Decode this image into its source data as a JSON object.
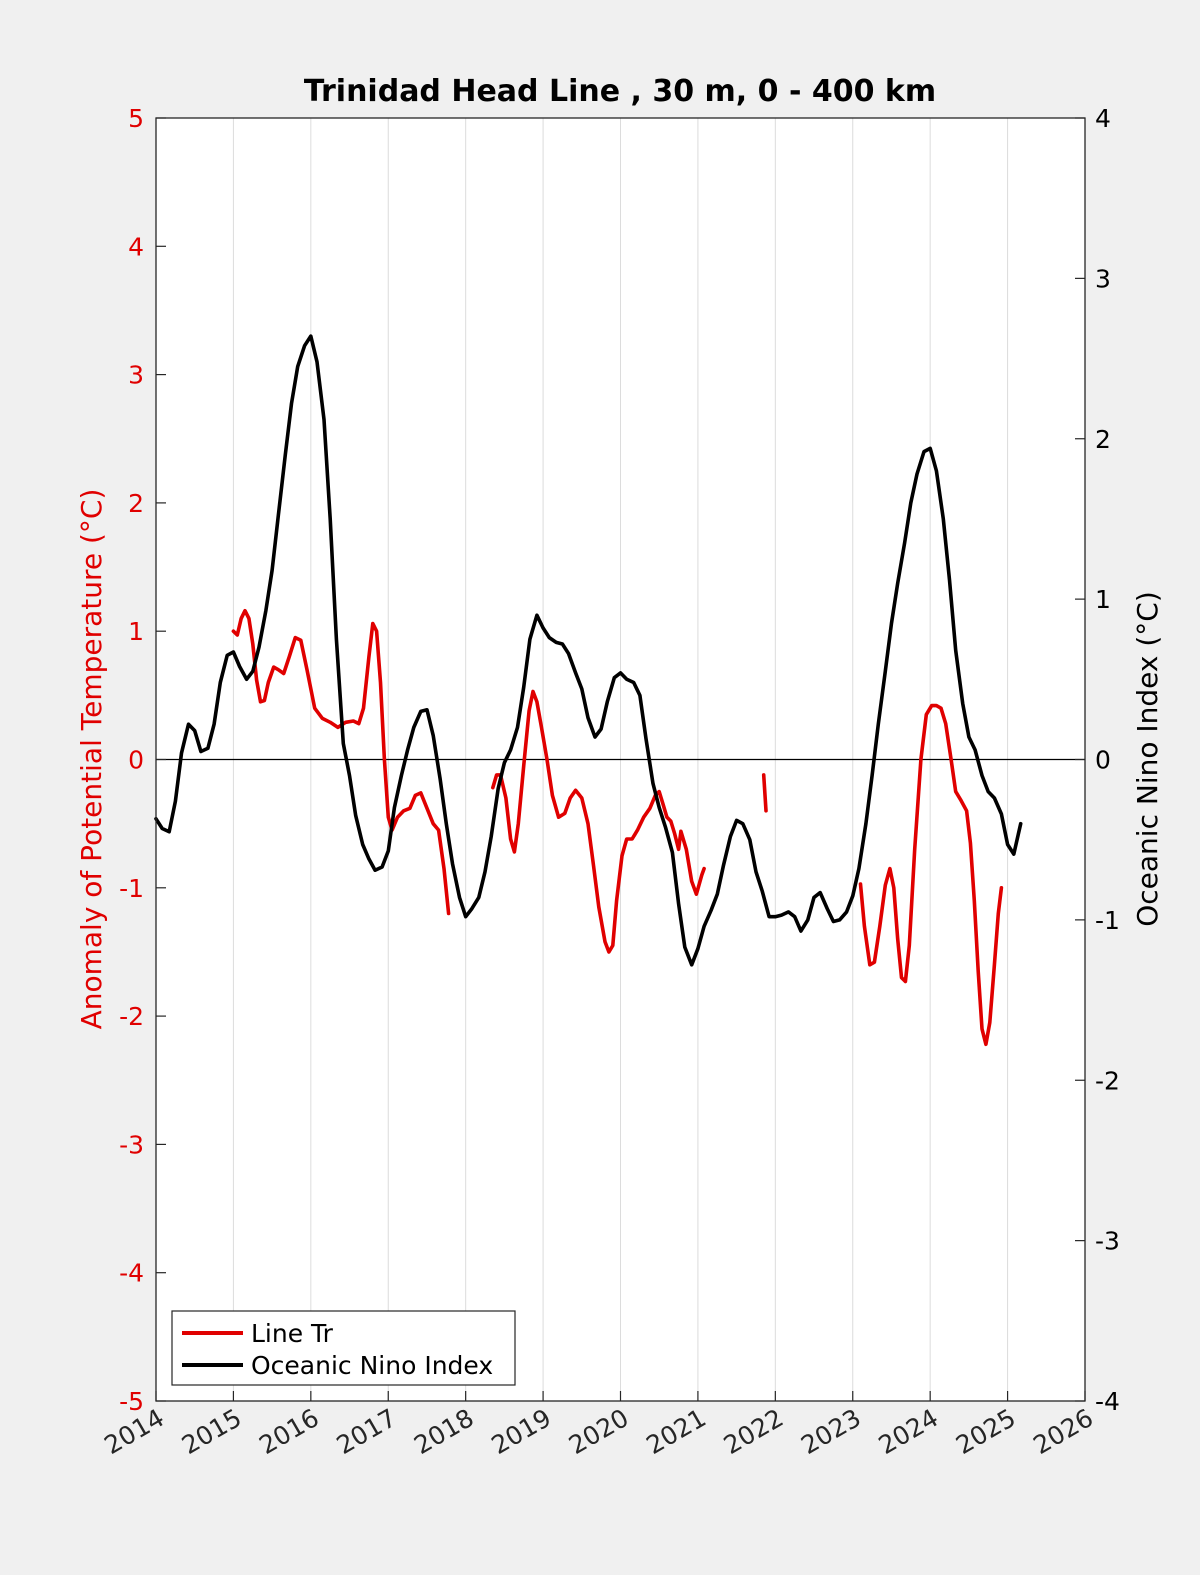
{
  "chart_data": {
    "type": "line",
    "title": "Trinidad Head Line , 30 m, 0 - 400 km",
    "ylabel_left": "Anomaly of Potential Temperature (°C)",
    "ylabel_right": "Oceanic Nino Index (°C)",
    "xlabel": "",
    "xlim": [
      2014,
      2026
    ],
    "ylim_left": [
      -5,
      5
    ],
    "ylim_right": [
      -4,
      4
    ],
    "x_ticks": [
      "2014",
      "2015",
      "2016",
      "2017",
      "2018",
      "2019",
      "2020",
      "2021",
      "2022",
      "2023",
      "2024",
      "2025",
      "2026"
    ],
    "y_ticks_left": [
      "5",
      "4",
      "3",
      "2",
      "1",
      "0",
      "-1",
      "-2",
      "-3",
      "-4",
      "-5"
    ],
    "y_ticks_right": [
      "4",
      "3",
      "2",
      "1",
      "0",
      "-1",
      "-2",
      "-3",
      "-4"
    ],
    "grid": "vertical",
    "zero_line": true,
    "legend": {
      "position": "bottom-left",
      "entries": [
        {
          "label": "Line Tr",
          "color": "#e00000"
        },
        {
          "label": "Oceanic Nino Index",
          "color": "#000000"
        }
      ]
    },
    "series": [
      {
        "name": "Line Tr",
        "axis": "left",
        "color": "#e00000",
        "segments": [
          [
            [
              2015.0,
              1.0
            ],
            [
              2015.05,
              0.97
            ],
            [
              2015.1,
              1.1
            ],
            [
              2015.15,
              1.16
            ],
            [
              2015.2,
              1.1
            ],
            [
              2015.25,
              0.9
            ],
            [
              2015.3,
              0.62
            ],
            [
              2015.35,
              0.45
            ],
            [
              2015.4,
              0.46
            ],
            [
              2015.45,
              0.6
            ],
            [
              2015.52,
              0.72
            ],
            [
              2015.58,
              0.7
            ],
            [
              2015.65,
              0.67
            ],
            [
              2015.72,
              0.8
            ],
            [
              2015.8,
              0.95
            ],
            [
              2015.87,
              0.93
            ],
            [
              2015.95,
              0.7
            ],
            [
              2016.05,
              0.4
            ],
            [
              2016.15,
              0.32
            ],
            [
              2016.25,
              0.29
            ],
            [
              2016.35,
              0.25
            ],
            [
              2016.45,
              0.29
            ],
            [
              2016.55,
              0.3
            ],
            [
              2016.62,
              0.28
            ],
            [
              2016.68,
              0.4
            ],
            [
              2016.75,
              0.8
            ],
            [
              2016.8,
              1.06
            ],
            [
              2016.85,
              1.0
            ],
            [
              2016.9,
              0.6
            ],
            [
              2016.95,
              0.0
            ],
            [
              2017.0,
              -0.45
            ],
            [
              2017.05,
              -0.55
            ],
            [
              2017.12,
              -0.45
            ],
            [
              2017.2,
              -0.4
            ],
            [
              2017.28,
              -0.38
            ],
            [
              2017.35,
              -0.28
            ],
            [
              2017.42,
              -0.26
            ],
            [
              2017.5,
              -0.38
            ],
            [
              2017.58,
              -0.5
            ],
            [
              2017.65,
              -0.55
            ],
            [
              2017.72,
              -0.85
            ],
            [
              2017.78,
              -1.2
            ]
          ],
          [
            [
              2018.35,
              -0.22
            ],
            [
              2018.4,
              -0.12
            ],
            [
              2018.45,
              -0.12
            ],
            [
              2018.52,
              -0.3
            ],
            [
              2018.58,
              -0.62
            ],
            [
              2018.63,
              -0.72
            ],
            [
              2018.68,
              -0.5
            ],
            [
              2018.75,
              -0.05
            ],
            [
              2018.82,
              0.38
            ],
            [
              2018.87,
              0.53
            ],
            [
              2018.92,
              0.45
            ],
            [
              2018.98,
              0.25
            ],
            [
              2019.05,
              0.0
            ],
            [
              2019.12,
              -0.28
            ],
            [
              2019.2,
              -0.45
            ],
            [
              2019.28,
              -0.42
            ],
            [
              2019.35,
              -0.3
            ],
            [
              2019.42,
              -0.24
            ],
            [
              2019.5,
              -0.3
            ],
            [
              2019.58,
              -0.5
            ],
            [
              2019.65,
              -0.82
            ],
            [
              2019.72,
              -1.15
            ],
            [
              2019.8,
              -1.42
            ],
            [
              2019.85,
              -1.5
            ],
            [
              2019.9,
              -1.45
            ],
            [
              2019.95,
              -1.1
            ],
            [
              2020.02,
              -0.75
            ],
            [
              2020.08,
              -0.62
            ],
            [
              2020.15,
              -0.62
            ],
            [
              2020.22,
              -0.55
            ],
            [
              2020.3,
              -0.45
            ],
            [
              2020.38,
              -0.38
            ],
            [
              2020.45,
              -0.28
            ],
            [
              2020.5,
              -0.25
            ],
            [
              2020.55,
              -0.35
            ],
            [
              2020.6,
              -0.45
            ],
            [
              2020.65,
              -0.48
            ],
            [
              2020.7,
              -0.58
            ],
            [
              2020.75,
              -0.7
            ],
            [
              2020.78,
              -0.56
            ],
            [
              2020.85,
              -0.7
            ],
            [
              2020.92,
              -0.95
            ],
            [
              2020.98,
              -1.05
            ],
            [
              2021.05,
              -0.9
            ],
            [
              2021.08,
              -0.85
            ]
          ],
          [
            [
              2021.85,
              -0.12
            ],
            [
              2021.88,
              -0.4
            ]
          ],
          [
            [
              2023.1,
              -0.97
            ],
            [
              2023.15,
              -1.3
            ],
            [
              2023.22,
              -1.6
            ],
            [
              2023.28,
              -1.58
            ],
            [
              2023.35,
              -1.3
            ],
            [
              2023.42,
              -0.98
            ],
            [
              2023.48,
              -0.85
            ],
            [
              2023.53,
              -1.0
            ],
            [
              2023.58,
              -1.4
            ],
            [
              2023.63,
              -1.7
            ],
            [
              2023.68,
              -1.73
            ],
            [
              2023.73,
              -1.45
            ],
            [
              2023.8,
              -0.7
            ],
            [
              2023.88,
              0.0
            ],
            [
              2023.95,
              0.35
            ],
            [
              2024.02,
              0.42
            ],
            [
              2024.08,
              0.42
            ],
            [
              2024.14,
              0.4
            ],
            [
              2024.2,
              0.28
            ],
            [
              2024.27,
              0.0
            ],
            [
              2024.33,
              -0.25
            ],
            [
              2024.4,
              -0.32
            ],
            [
              2024.47,
              -0.4
            ],
            [
              2024.52,
              -0.65
            ],
            [
              2024.57,
              -1.1
            ],
            [
              2024.62,
              -1.65
            ],
            [
              2024.67,
              -2.1
            ],
            [
              2024.72,
              -2.22
            ],
            [
              2024.77,
              -2.05
            ],
            [
              2024.83,
              -1.6
            ],
            [
              2024.88,
              -1.2
            ],
            [
              2024.92,
              -1.0
            ]
          ]
        ]
      },
      {
        "name": "Oceanic Nino Index",
        "axis": "right",
        "color": "#000000",
        "segments": [
          [
            [
              2014.0,
              -0.37
            ],
            [
              2014.08,
              -0.43
            ],
            [
              2014.17,
              -0.45
            ],
            [
              2014.25,
              -0.26
            ],
            [
              2014.33,
              0.04
            ],
            [
              2014.42,
              0.22
            ],
            [
              2014.5,
              0.18
            ],
            [
              2014.58,
              0.05
            ],
            [
              2014.67,
              0.07
            ],
            [
              2014.75,
              0.22
            ],
            [
              2014.83,
              0.48
            ],
            [
              2014.92,
              0.65
            ],
            [
              2015.0,
              0.67
            ],
            [
              2015.08,
              0.58
            ],
            [
              2015.17,
              0.5
            ],
            [
              2015.25,
              0.55
            ],
            [
              2015.33,
              0.7
            ],
            [
              2015.42,
              0.93
            ],
            [
              2015.5,
              1.18
            ],
            [
              2015.58,
              1.52
            ],
            [
              2015.67,
              1.9
            ],
            [
              2015.75,
              2.22
            ],
            [
              2015.83,
              2.45
            ],
            [
              2015.92,
              2.58
            ],
            [
              2016.0,
              2.64
            ],
            [
              2016.08,
              2.48
            ],
            [
              2016.17,
              2.12
            ],
            [
              2016.25,
              1.5
            ],
            [
              2016.33,
              0.75
            ],
            [
              2016.42,
              0.1
            ],
            [
              2016.5,
              -0.1
            ],
            [
              2016.58,
              -0.35
            ],
            [
              2016.67,
              -0.53
            ],
            [
              2016.75,
              -0.62
            ],
            [
              2016.83,
              -0.69
            ],
            [
              2016.92,
              -0.67
            ],
            [
              2017.0,
              -0.57
            ],
            [
              2017.08,
              -0.3
            ],
            [
              2017.17,
              -0.1
            ],
            [
              2017.25,
              0.06
            ],
            [
              2017.33,
              0.2
            ],
            [
              2017.42,
              0.3
            ],
            [
              2017.5,
              0.31
            ],
            [
              2017.58,
              0.15
            ],
            [
              2017.67,
              -0.12
            ],
            [
              2017.75,
              -0.4
            ],
            [
              2017.83,
              -0.65
            ],
            [
              2017.92,
              -0.86
            ],
            [
              2018.0,
              -0.98
            ],
            [
              2018.08,
              -0.93
            ],
            [
              2018.17,
              -0.86
            ],
            [
              2018.25,
              -0.7
            ],
            [
              2018.33,
              -0.48
            ],
            [
              2018.42,
              -0.18
            ],
            [
              2018.5,
              -0.02
            ],
            [
              2018.58,
              0.06
            ],
            [
              2018.67,
              0.2
            ],
            [
              2018.75,
              0.45
            ],
            [
              2018.83,
              0.75
            ],
            [
              2018.92,
              0.9
            ],
            [
              2019.0,
              0.82
            ],
            [
              2019.08,
              0.76
            ],
            [
              2019.17,
              0.73
            ],
            [
              2019.25,
              0.72
            ],
            [
              2019.33,
              0.66
            ],
            [
              2019.42,
              0.54
            ],
            [
              2019.5,
              0.44
            ],
            [
              2019.58,
              0.26
            ],
            [
              2019.67,
              0.14
            ],
            [
              2019.75,
              0.19
            ],
            [
              2019.83,
              0.36
            ],
            [
              2019.92,
              0.51
            ],
            [
              2020.0,
              0.54
            ],
            [
              2020.08,
              0.5
            ],
            [
              2020.17,
              0.48
            ],
            [
              2020.25,
              0.4
            ],
            [
              2020.33,
              0.13
            ],
            [
              2020.42,
              -0.15
            ],
            [
              2020.5,
              -0.3
            ],
            [
              2020.58,
              -0.42
            ],
            [
              2020.67,
              -0.58
            ],
            [
              2020.75,
              -0.9
            ],
            [
              2020.83,
              -1.17
            ],
            [
              2020.92,
              -1.28
            ],
            [
              2021.0,
              -1.18
            ],
            [
              2021.08,
              -1.04
            ],
            [
              2021.17,
              -0.94
            ],
            [
              2021.25,
              -0.84
            ],
            [
              2021.33,
              -0.66
            ],
            [
              2021.42,
              -0.48
            ],
            [
              2021.5,
              -0.38
            ],
            [
              2021.58,
              -0.4
            ],
            [
              2021.67,
              -0.5
            ],
            [
              2021.75,
              -0.7
            ],
            [
              2021.83,
              -0.82
            ],
            [
              2021.92,
              -0.98
            ],
            [
              2022.0,
              -0.98
            ],
            [
              2022.08,
              -0.97
            ],
            [
              2022.17,
              -0.95
            ],
            [
              2022.25,
              -0.98
            ],
            [
              2022.33,
              -1.07
            ],
            [
              2022.42,
              -1.0
            ],
            [
              2022.5,
              -0.86
            ],
            [
              2022.58,
              -0.83
            ],
            [
              2022.67,
              -0.93
            ],
            [
              2022.75,
              -1.01
            ],
            [
              2022.83,
              -1.0
            ],
            [
              2022.92,
              -0.95
            ],
            [
              2023.0,
              -0.85
            ],
            [
              2023.08,
              -0.68
            ],
            [
              2023.17,
              -0.4
            ],
            [
              2023.25,
              -0.1
            ],
            [
              2023.33,
              0.22
            ],
            [
              2023.42,
              0.55
            ],
            [
              2023.5,
              0.85
            ],
            [
              2023.58,
              1.1
            ],
            [
              2023.67,
              1.35
            ],
            [
              2023.75,
              1.6
            ],
            [
              2023.83,
              1.78
            ],
            [
              2023.92,
              1.92
            ],
            [
              2024.0,
              1.94
            ],
            [
              2024.08,
              1.8
            ],
            [
              2024.17,
              1.5
            ],
            [
              2024.25,
              1.12
            ],
            [
              2024.33,
              0.68
            ],
            [
              2024.42,
              0.35
            ],
            [
              2024.5,
              0.14
            ],
            [
              2024.58,
              0.06
            ],
            [
              2024.67,
              -0.1
            ],
            [
              2024.75,
              -0.2
            ],
            [
              2024.83,
              -0.24
            ],
            [
              2024.92,
              -0.34
            ],
            [
              2025.0,
              -0.53
            ],
            [
              2025.08,
              -0.59
            ],
            [
              2025.17,
              -0.4
            ]
          ]
        ]
      }
    ]
  }
}
